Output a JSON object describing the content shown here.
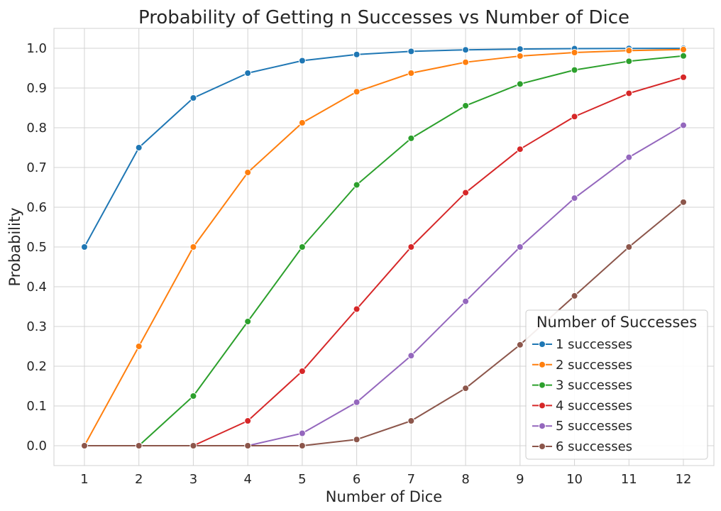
{
  "chart_data": {
    "type": "line",
    "title": "Probability of Getting n Successes vs Number of Dice",
    "xlabel": "Number of Dice",
    "ylabel": "Probability",
    "x": [
      1,
      2,
      3,
      4,
      5,
      6,
      7,
      8,
      9,
      10,
      11,
      12
    ],
    "xlim": [
      0.44,
      12.56
    ],
    "ylim": [
      -0.05,
      1.05
    ],
    "yticks": [
      0.0,
      0.1,
      0.2,
      0.3,
      0.4,
      0.5,
      0.6,
      0.7,
      0.8,
      0.9,
      1.0
    ],
    "ytick_labels": [
      "0.0",
      "0.1",
      "0.2",
      "0.3",
      "0.4",
      "0.5",
      "0.6",
      "0.7",
      "0.8",
      "0.9",
      "1.0"
    ],
    "xtick_labels": [
      "1",
      "2",
      "3",
      "4",
      "5",
      "6",
      "7",
      "8",
      "9",
      "10",
      "11",
      "12"
    ],
    "grid": true,
    "markers": true,
    "legend": {
      "title": "Number of Successes",
      "placement": "lower-right"
    },
    "series": [
      {
        "name": "1 successes",
        "color": "#1f77b4",
        "values": [
          0.5,
          0.75,
          0.875,
          0.9375,
          0.96875,
          0.984375,
          0.9921875,
          0.99609375,
          0.998046875,
          0.9990234375,
          0.99951171875,
          0.999755859375
        ]
      },
      {
        "name": "2 successes",
        "color": "#ff7f0e",
        "values": [
          0.0,
          0.25,
          0.5,
          0.6875,
          0.8125,
          0.890625,
          0.9375,
          0.96484375,
          0.98046875,
          0.989257813,
          0.994140625,
          0.996826172
        ]
      },
      {
        "name": "3 successes",
        "color": "#2ca02c",
        "values": [
          0.0,
          0.0,
          0.125,
          0.3125,
          0.5,
          0.65625,
          0.7734375,
          0.85546875,
          0.91015625,
          0.9453125,
          0.967285156,
          0.980712891
        ]
      },
      {
        "name": "4 successes",
        "color": "#d62728",
        "values": [
          0.0,
          0.0,
          0.0,
          0.0625,
          0.1875,
          0.34375,
          0.5,
          0.63671875,
          0.74609375,
          0.828125,
          0.88671875,
          0.927001953
        ]
      },
      {
        "name": "5 successes",
        "color": "#9467bd",
        "values": [
          0.0,
          0.0,
          0.0,
          0.0,
          0.03125,
          0.109375,
          0.2265625,
          0.36328125,
          0.5,
          0.623046875,
          0.725585938,
          0.806152344
        ]
      },
      {
        "name": "6 successes",
        "color": "#8c564b",
        "values": [
          0.0,
          0.0,
          0.0,
          0.0,
          0.0,
          0.015625,
          0.0625,
          0.14453125,
          0.25390625,
          0.376953125,
          0.5,
          0.612792969
        ]
      }
    ]
  }
}
